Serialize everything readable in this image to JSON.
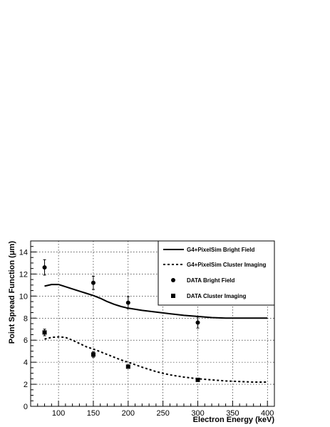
{
  "chart_data": {
    "type": "line",
    "title": "",
    "xlabel": "Electron Energy (keV)",
    "ylabel": "Point Spread Function (μm)",
    "xlim": [
      60,
      410
    ],
    "ylim": [
      0,
      15
    ],
    "xticks": [
      100,
      150,
      200,
      250,
      300,
      350,
      400
    ],
    "yticks": [
      0,
      2,
      4,
      6,
      8,
      10,
      12,
      14
    ],
    "grid": true,
    "legend_position": "top-right",
    "series": [
      {
        "name": "G4+PixelSim Bright Field",
        "kind": "line",
        "style": "solid",
        "x": [
          80,
          90,
          100,
          110,
          120,
          130,
          140,
          150,
          160,
          170,
          180,
          190,
          200,
          220,
          240,
          260,
          280,
          300,
          320,
          340,
          360,
          380,
          400
        ],
        "y": [
          10.9,
          11.05,
          11.05,
          10.85,
          10.65,
          10.45,
          10.25,
          10.05,
          9.8,
          9.5,
          9.25,
          9.05,
          8.9,
          8.7,
          8.55,
          8.4,
          8.25,
          8.15,
          8.05,
          8.0,
          8.0,
          8.0,
          8.0
        ]
      },
      {
        "name": "G4+PixelSim Cluster Imaging",
        "kind": "line",
        "style": "dashed",
        "x": [
          80,
          90,
          100,
          110,
          120,
          130,
          140,
          150,
          160,
          170,
          180,
          190,
          200,
          220,
          240,
          260,
          280,
          300,
          320,
          340,
          360,
          380,
          400
        ],
        "y": [
          6.1,
          6.25,
          6.3,
          6.25,
          6.0,
          5.7,
          5.4,
          5.2,
          4.95,
          4.7,
          4.45,
          4.2,
          4.0,
          3.55,
          3.15,
          2.85,
          2.65,
          2.5,
          2.4,
          2.3,
          2.25,
          2.2,
          2.2
        ]
      },
      {
        "name": "DATA Bright Field",
        "kind": "points",
        "marker": "circle",
        "x": [
          80,
          150,
          200,
          300
        ],
        "y": [
          12.6,
          11.2,
          9.4,
          7.6
        ],
        "err": [
          0.7,
          0.6,
          0.55,
          0.5
        ]
      },
      {
        "name": "DATA Cluster Imaging",
        "kind": "points",
        "marker": "square",
        "x": [
          80,
          150,
          200,
          300
        ],
        "y": [
          6.7,
          4.7,
          3.6,
          2.4
        ],
        "err": [
          0.3,
          0.25,
          0.1,
          0.1
        ]
      }
    ]
  }
}
